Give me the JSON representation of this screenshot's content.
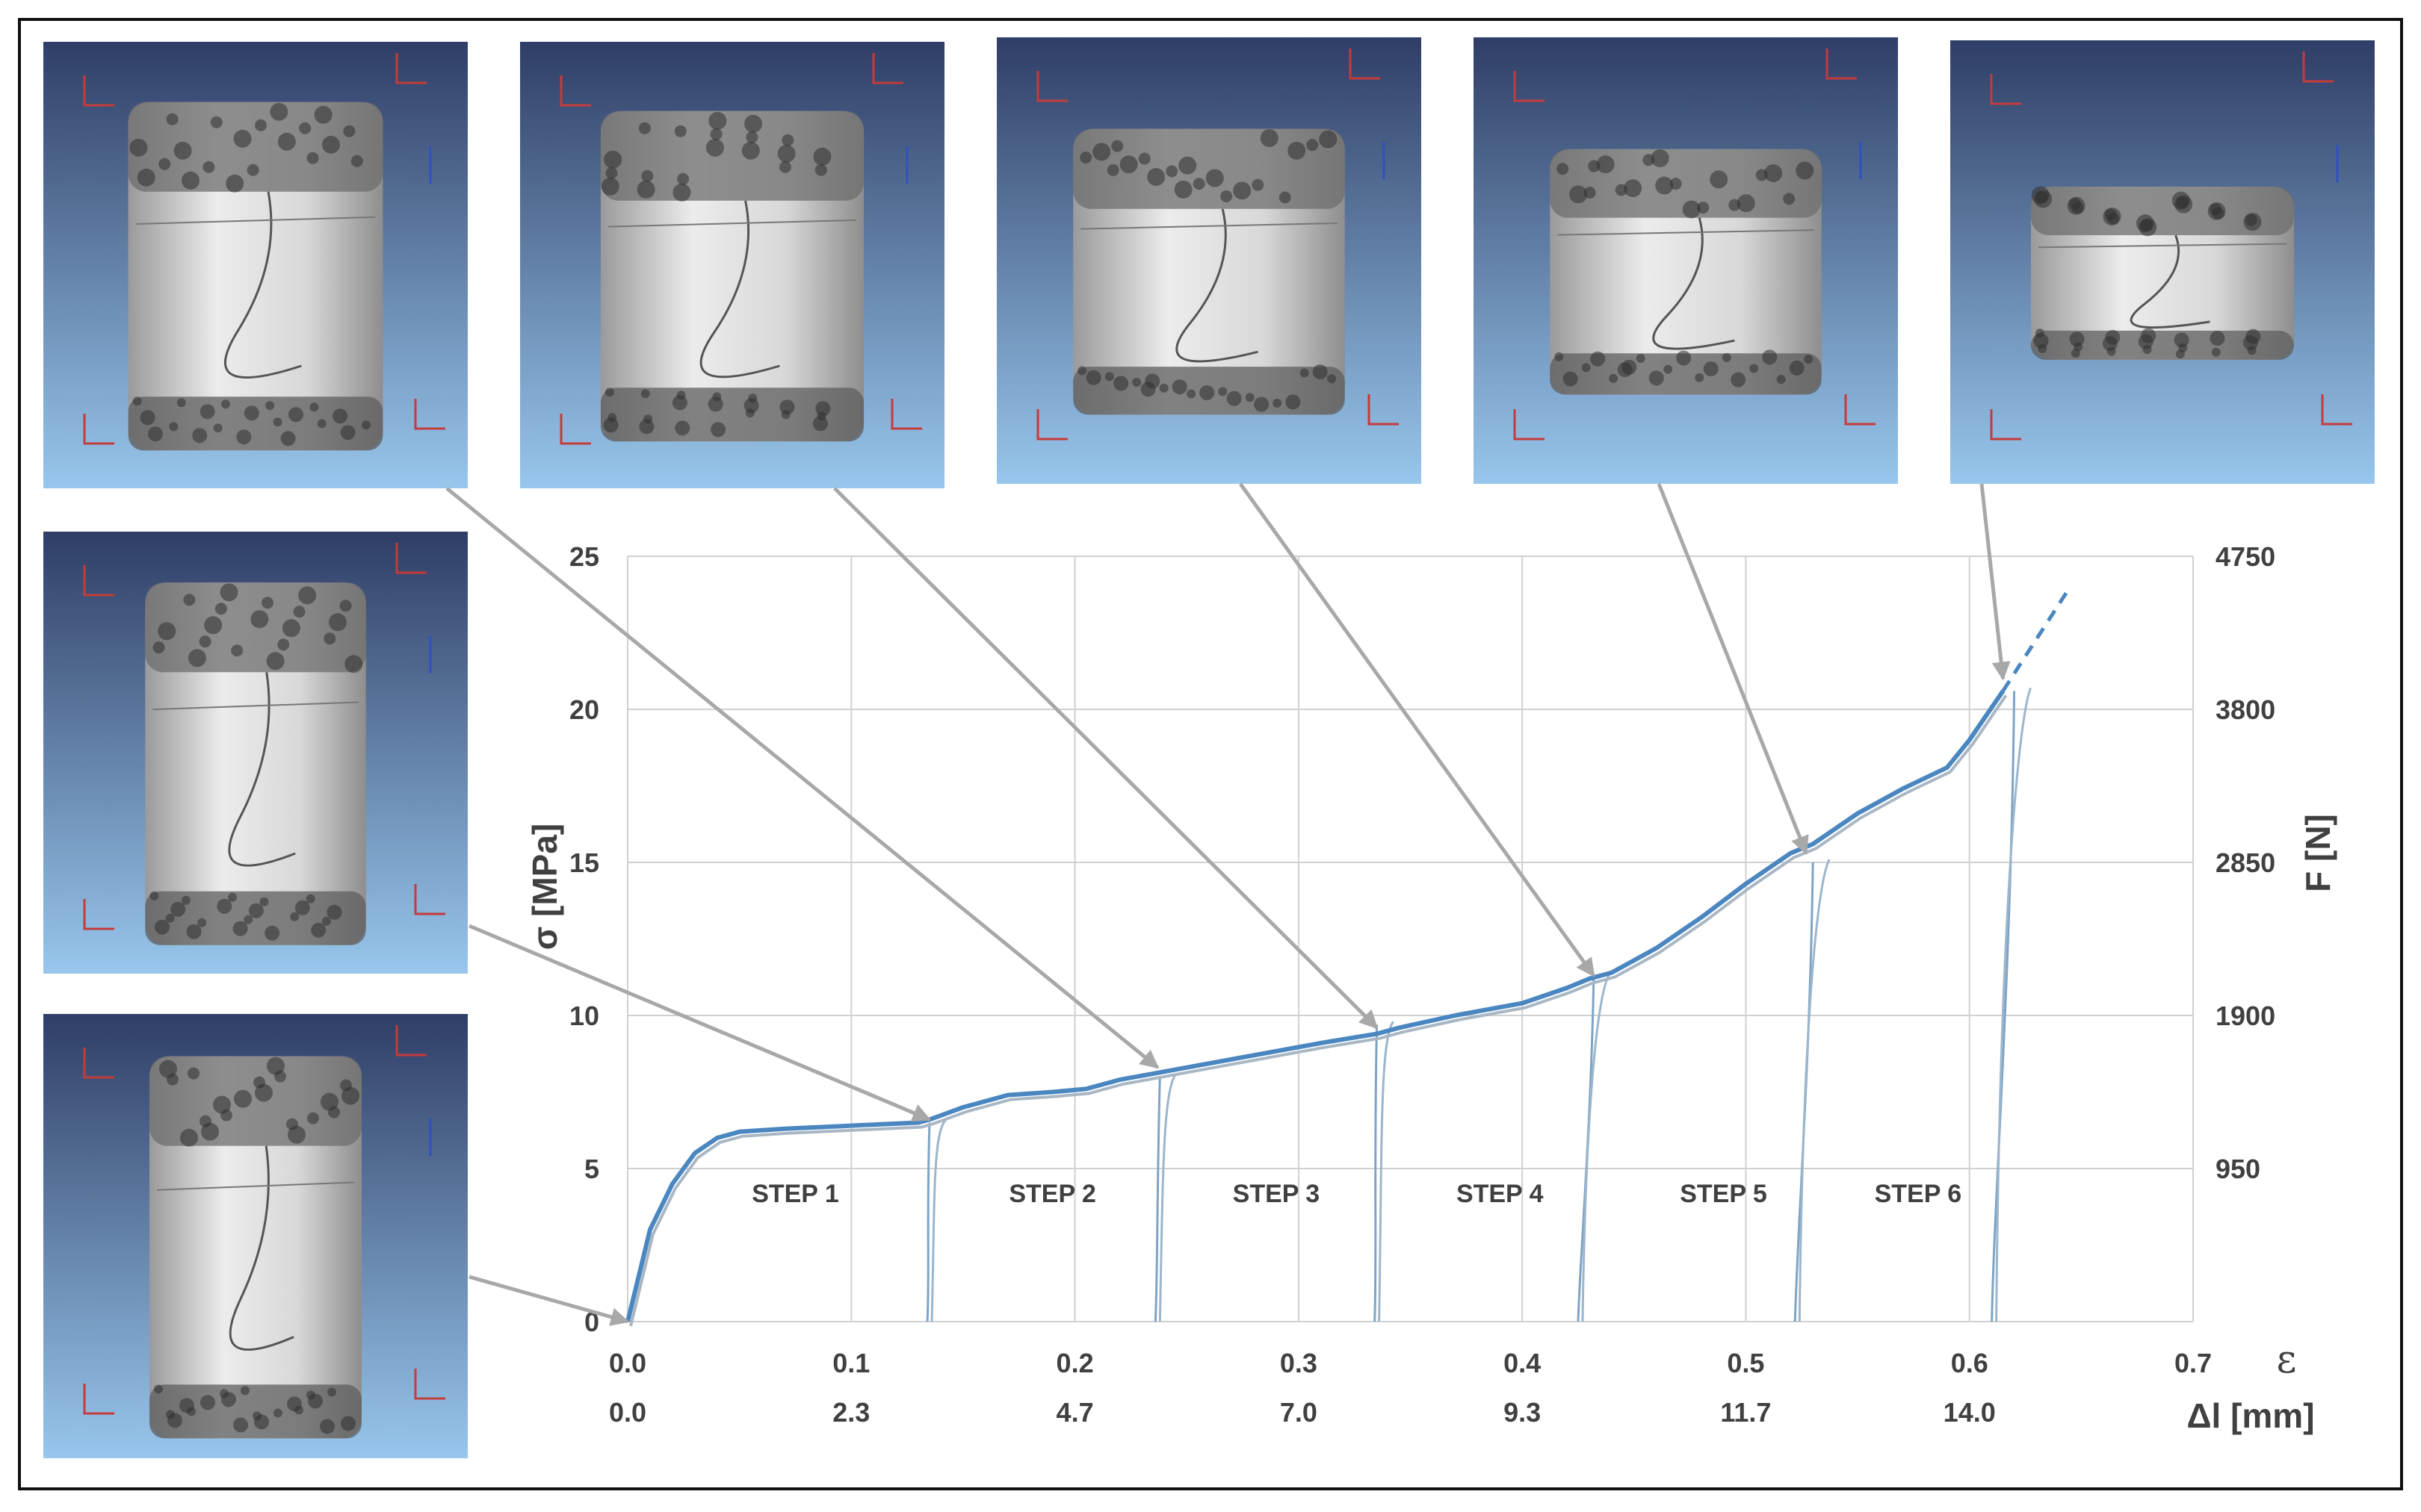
{
  "chart_data": {
    "type": "line",
    "left_axis": {
      "label": "σ [MPa]",
      "ticks": [
        0,
        5,
        10,
        15,
        20,
        25
      ],
      "range": [
        0,
        25
      ]
    },
    "right_axis": {
      "label": "F [N]",
      "ticks": [
        "950",
        "1900",
        "2850",
        "3800",
        "4750"
      ]
    },
    "x_axis": {
      "strain_symbol": "ε",
      "strain_ticks": [
        "0.0",
        "0.1",
        "0.2",
        "0.3",
        "0.4",
        "0.5",
        "0.6",
        "0.7"
      ],
      "strain_range": [
        0,
        0.7
      ],
      "displacement_label": "Δl [mm]",
      "displacement_ticks": [
        "0.0",
        "2.3",
        "4.7",
        "7.0",
        "9.3",
        "11.7",
        "14.0"
      ]
    },
    "grid": true,
    "step_labels": [
      "STEP 1",
      "STEP 2",
      "STEP 3",
      "STEP 4",
      "STEP 5",
      "STEP 6"
    ],
    "series": [
      {
        "style": "solid",
        "color": "#4a86c0",
        "x": [
          0.0,
          0.005,
          0.01,
          0.02,
          0.03,
          0.04,
          0.05,
          0.07,
          0.1,
          0.13,
          0.135,
          0.15,
          0.17,
          0.19,
          0.205,
          0.22,
          0.235,
          0.25,
          0.28,
          0.31,
          0.335,
          0.345,
          0.37,
          0.4,
          0.42,
          0.43,
          0.44,
          0.46,
          0.48,
          0.5,
          0.52,
          0.53,
          0.55,
          0.57,
          0.59,
          0.6,
          0.615
        ],
        "y": [
          0.0,
          1.5,
          3.0,
          4.5,
          5.5,
          6.0,
          6.2,
          6.3,
          6.4,
          6.5,
          6.6,
          7.0,
          7.4,
          7.5,
          7.6,
          7.9,
          8.1,
          8.3,
          8.7,
          9.1,
          9.4,
          9.6,
          10.0,
          10.4,
          10.9,
          11.2,
          11.4,
          12.2,
          13.2,
          14.3,
          15.3,
          15.6,
          16.6,
          17.4,
          18.1,
          19.0,
          20.6
        ]
      },
      {
        "style": "dashed",
        "color": "#4a86c0",
        "x": [
          0.615,
          0.63,
          0.645
        ],
        "y": [
          20.6,
          22.3,
          24.0
        ]
      }
    ],
    "unloading_branches": [
      {
        "peak": [
          0.135,
          6.5
        ],
        "base": 0.134
      },
      {
        "peak": [
          0.238,
          8.0
        ],
        "base": 0.236
      },
      {
        "peak": [
          0.335,
          9.7
        ],
        "base": 0.334
      },
      {
        "peak": [
          0.432,
          11.3
        ],
        "base": 0.425
      },
      {
        "peak": [
          0.53,
          15.0
        ],
        "base": 0.522
      },
      {
        "peak": [
          0.62,
          20.6
        ],
        "base": 0.61
      }
    ],
    "annotations": [
      {
        "image": 1,
        "target": [
          0.0,
          0.0
        ]
      },
      {
        "image": 2,
        "target": [
          0.135,
          6.6
        ]
      },
      {
        "image": 3,
        "target": [
          0.237,
          8.3
        ]
      },
      {
        "image": 4,
        "target": [
          0.335,
          9.6
        ]
      },
      {
        "image": 5,
        "target": [
          0.432,
          11.3
        ]
      },
      {
        "image": 6,
        "target": [
          0.527,
          15.3
        ]
      },
      {
        "image": 7,
        "target": [
          0.615,
          21.0
        ]
      }
    ]
  },
  "images": [
    {
      "id": 1,
      "name": "specimen-image-initial",
      "height_rel": 0.86,
      "width_rel": 0.5
    },
    {
      "id": 2,
      "name": "specimen-image-step-1",
      "height_rel": 0.82,
      "width_rel": 0.52
    },
    {
      "id": 3,
      "name": "specimen-image-step-2",
      "height_rel": 0.78,
      "width_rel": 0.6
    },
    {
      "id": 4,
      "name": "specimen-image-step-3",
      "height_rel": 0.74,
      "width_rel": 0.62
    },
    {
      "id": 5,
      "name": "specimen-image-step-4",
      "height_rel": 0.64,
      "width_rel": 0.64
    },
    {
      "id": 6,
      "name": "specimen-image-step-5",
      "height_rel": 0.55,
      "width_rel": 0.64
    },
    {
      "id": 7,
      "name": "specimen-image-step-6",
      "height_rel": 0.39,
      "width_rel": 0.62
    }
  ],
  "colors": {
    "curve": "#4a86c0",
    "grid": "#d0d0d0",
    "arrow": "#a8a8a8",
    "axis_text": "#404040",
    "render_bg_top": "#2f3e66",
    "render_bg_bottom": "#98c6ec",
    "sample": "#cfcfcf"
  }
}
